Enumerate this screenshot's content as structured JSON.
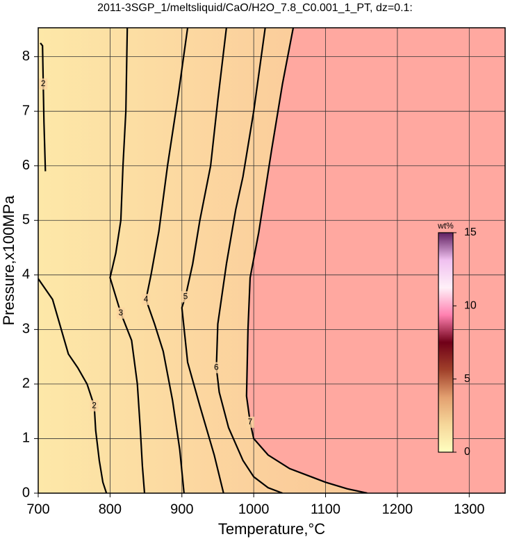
{
  "chart_data": {
    "type": "contour",
    "title": "2011-3SGP_1/meltsliquid/CaO/H2O_7.8_C0.001_1_PT, dz=0.1:",
    "x_label": "Temperature,°C",
    "y_label": "Pressure,x100MPa",
    "xlim": [
      700,
      1350
    ],
    "ylim": [
      0,
      8.53
    ],
    "xticks": [
      700,
      800,
      900,
      1000,
      1100,
      1200,
      1300
    ],
    "yticks": [
      0,
      1,
      2,
      3,
      4,
      5,
      6,
      7,
      8
    ],
    "grid": true,
    "region_color": "#ffa8a0",
    "contours": [
      {
        "level": 2,
        "x": [
          703,
          706,
          707,
          708,
          710
        ],
        "y": [
          8.25,
          8.2,
          7.5,
          6.8,
          5.9
        ]
      },
      {
        "level": 2,
        "x": [
          700,
          720,
          742,
          755,
          768,
          778,
          780,
          785,
          790,
          795
        ],
        "y": [
          3.93,
          3.55,
          2.55,
          2.3,
          2.0,
          1.6,
          1.15,
          0.6,
          0.2,
          0
        ]
      },
      {
        "level": 3,
        "x": [
          824,
          822,
          818,
          815,
          808,
          800,
          815,
          830,
          838,
          842,
          845,
          848
        ],
        "y": [
          8.53,
          7.0,
          6.0,
          5.0,
          4.4,
          3.95,
          3.3,
          2.8,
          2.0,
          1.2,
          0.5,
          0
        ]
      },
      {
        "level": 4,
        "x": [
          908,
          895,
          880,
          868,
          857,
          850,
          862,
          874,
          887,
          897,
          903
        ],
        "y": [
          8.53,
          7.3,
          6.0,
          4.8,
          4.0,
          3.55,
          3.1,
          2.6,
          1.7,
          0.8,
          0
        ]
      },
      {
        "level": 5,
        "x": [
          962,
          950,
          940,
          925,
          915,
          905,
          900,
          908,
          925,
          945,
          958
        ],
        "y": [
          8.53,
          7.2,
          6.0,
          5.0,
          4.2,
          3.6,
          3.4,
          2.4,
          1.6,
          0.7,
          0
        ]
      },
      {
        "level": 6,
        "x": [
          1016,
          1000,
          985,
          975,
          962,
          950,
          948,
          952,
          965,
          985,
          1000,
          1020,
          1040
        ],
        "y": [
          8.53,
          7.0,
          5.8,
          5.2,
          4.2,
          3.1,
          2.3,
          1.85,
          1.2,
          0.6,
          0.3,
          0.1,
          0
        ]
      },
      {
        "level": 7,
        "x": [
          1055,
          1040,
          1025,
          1007,
          995,
          992,
          990,
          995,
          1000,
          1020,
          1050,
          1080,
          1100,
          1130,
          1158
        ],
        "y": [
          8.53,
          7.5,
          6.3,
          4.78,
          3.95,
          3.0,
          1.78,
          1.3,
          1.0,
          0.7,
          0.45,
          0.3,
          0.2,
          0.08,
          0
        ]
      }
    ],
    "colorbar": {
      "label": "wt%",
      "lim": [
        0,
        15
      ],
      "ticks": [
        0,
        5,
        10,
        15
      ],
      "colors": [
        "#ffffc0",
        "#f6d79a",
        "#e3a070",
        "#a0402a",
        "#700018",
        "#ff80b0",
        "#fff0f8",
        "#f0c0f0",
        "#602060"
      ]
    }
  }
}
